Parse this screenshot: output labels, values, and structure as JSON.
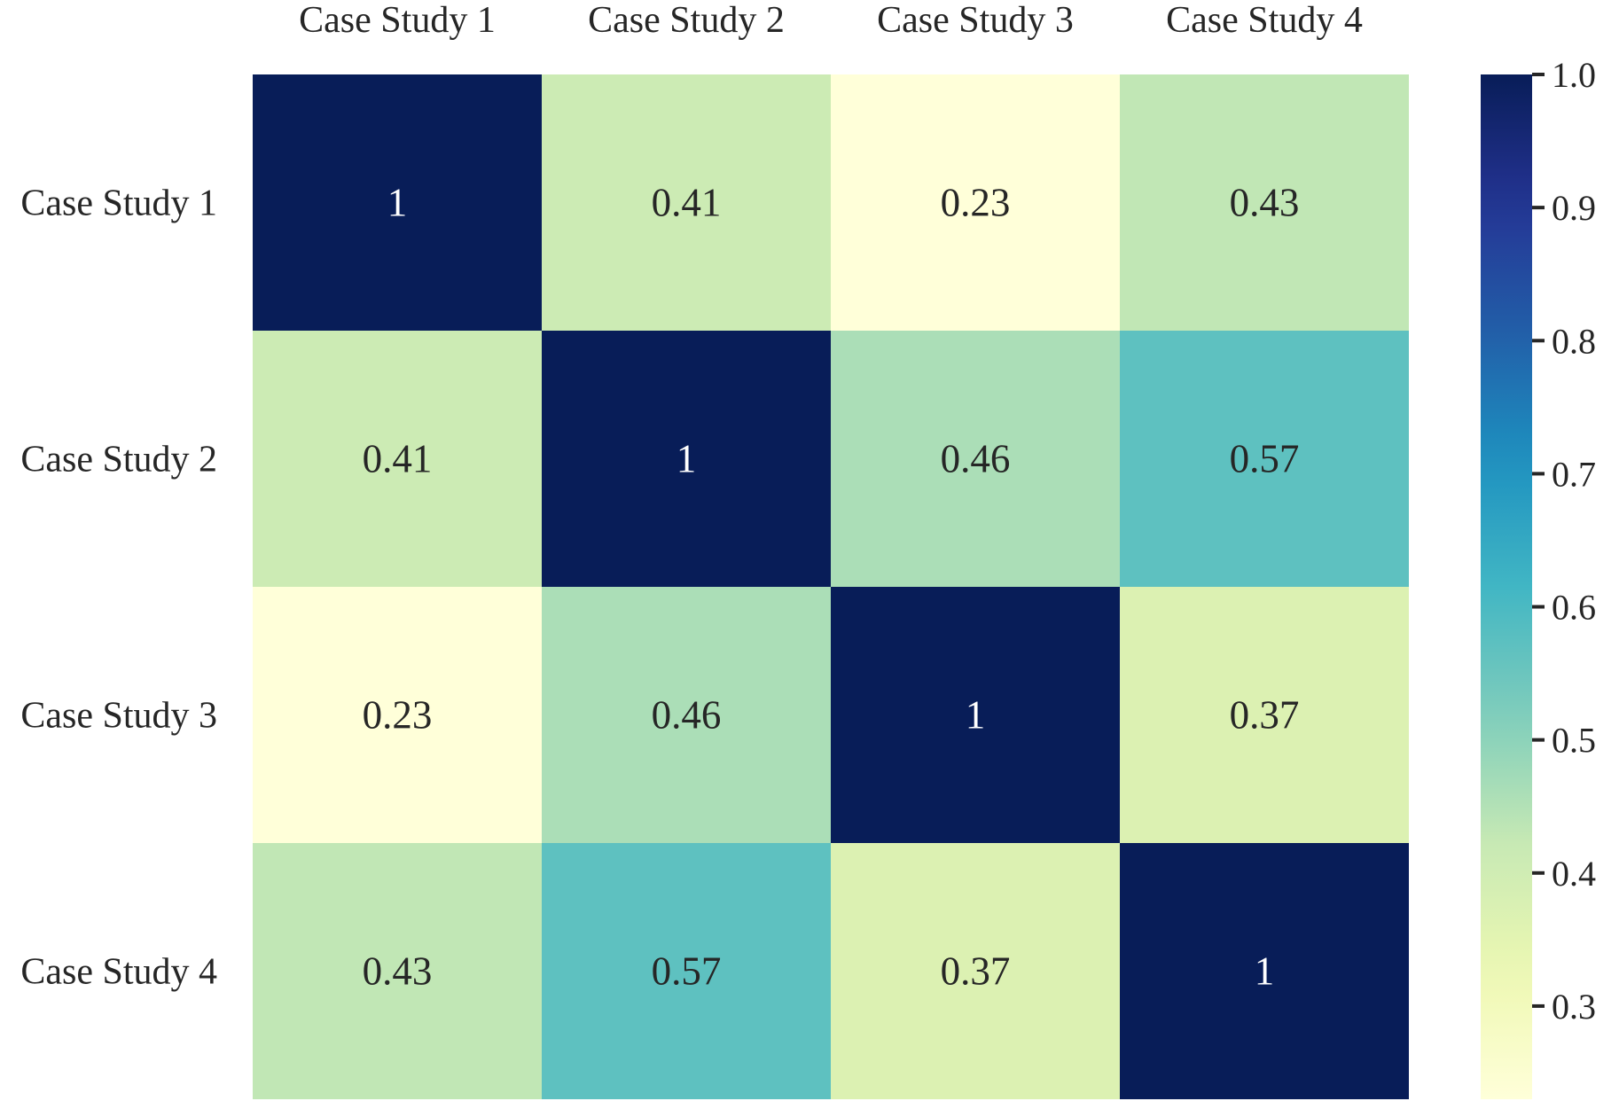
{
  "chart_data": {
    "type": "heatmap",
    "title": "",
    "xlabel": "",
    "ylabel": "",
    "x_categories": [
      "Case Study 1",
      "Case Study 2",
      "Case Study 3",
      "Case Study 4"
    ],
    "y_categories": [
      "Case Study 1",
      "Case Study 2",
      "Case Study 3",
      "Case Study 4"
    ],
    "values": [
      [
        1,
        0.41,
        0.23,
        0.43
      ],
      [
        0.41,
        1,
        0.46,
        0.57
      ],
      [
        0.23,
        0.46,
        1,
        0.37
      ],
      [
        0.43,
        0.57,
        0.37,
        1
      ]
    ],
    "x_axis_position": "top",
    "annotations": true,
    "colormap": "YlGnBu",
    "colorbar": {
      "range": [
        0.23,
        1.0
      ],
      "ticks": [
        0.3,
        0.4,
        0.5,
        0.6,
        0.7,
        0.8,
        0.9,
        1.0
      ],
      "tick_labels": [
        "0.3",
        "0.4",
        "0.5",
        "0.6",
        "0.7",
        "0.8",
        "0.9",
        "1.0"
      ],
      "position": "right"
    },
    "grid": false
  }
}
